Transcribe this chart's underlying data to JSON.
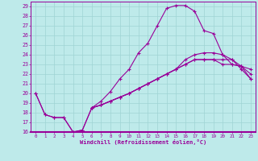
{
  "xlabel": "Windchill (Refroidissement éolien,°C)",
  "xlim": [
    -0.5,
    23.5
  ],
  "ylim": [
    16,
    29.5
  ],
  "xticks": [
    0,
    1,
    2,
    3,
    4,
    5,
    6,
    7,
    8,
    9,
    10,
    11,
    12,
    13,
    14,
    15,
    16,
    17,
    18,
    19,
    20,
    21,
    22,
    23
  ],
  "yticks": [
    16,
    17,
    18,
    19,
    20,
    21,
    22,
    23,
    24,
    25,
    26,
    27,
    28,
    29
  ],
  "bg_color": "#beeaea",
  "grid_color": "#9fd4d4",
  "line_color": "#990099",
  "curve1_x": [
    0,
    1,
    2,
    3,
    4,
    5,
    6,
    7,
    8,
    9,
    10,
    11,
    12,
    13,
    14,
    15,
    16,
    17,
    18,
    19,
    20,
    21,
    22,
    23
  ],
  "curve1_y": [
    20.0,
    17.8,
    17.5,
    17.5,
    16.0,
    16.2,
    18.5,
    19.2,
    20.2,
    21.5,
    22.5,
    24.2,
    25.2,
    27.0,
    28.8,
    29.1,
    29.1,
    28.5,
    26.5,
    26.2,
    24.0,
    23.0,
    22.8,
    22.0
  ],
  "curve2_x": [
    0,
    1,
    2,
    3,
    4,
    5,
    6,
    7,
    8,
    9,
    10,
    11,
    12,
    13,
    14,
    15,
    16,
    17,
    18,
    19,
    20,
    21,
    22,
    23
  ],
  "curve2_y": [
    20.0,
    17.8,
    17.5,
    17.5,
    16.0,
    16.2,
    18.5,
    18.8,
    19.2,
    19.6,
    20.0,
    20.5,
    21.0,
    21.5,
    22.0,
    22.5,
    23.0,
    23.5,
    23.5,
    23.5,
    23.0,
    23.0,
    22.8,
    22.5
  ],
  "curve3_x": [
    6,
    7,
    8,
    9,
    10,
    11,
    12,
    13,
    14,
    15,
    16,
    17,
    18,
    19,
    20,
    21,
    22,
    23
  ],
  "curve3_y": [
    18.5,
    18.8,
    19.2,
    19.6,
    20.0,
    20.5,
    21.0,
    21.5,
    22.0,
    22.5,
    23.0,
    23.5,
    23.5,
    23.5,
    23.5,
    23.5,
    22.5,
    21.5
  ],
  "curve4_x": [
    6,
    7,
    8,
    9,
    10,
    11,
    12,
    13,
    14,
    15,
    16,
    17,
    18,
    19,
    20,
    21,
    22,
    23
  ],
  "curve4_y": [
    18.5,
    18.8,
    19.2,
    19.6,
    20.0,
    20.5,
    21.0,
    21.5,
    22.0,
    22.5,
    23.5,
    24.0,
    24.2,
    24.2,
    24.0,
    23.5,
    22.8,
    21.5
  ]
}
